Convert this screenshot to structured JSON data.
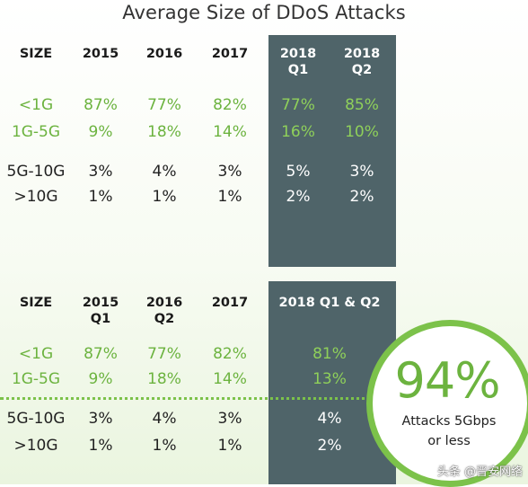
{
  "title": "Average Size of DDoS Attacks",
  "chart_data": [
    {
      "type": "table",
      "title": "Average Size of DDoS Attacks",
      "columns": [
        "SIZE",
        "2015",
        "2016",
        "2017",
        "2018 Q1",
        "2018 Q2"
      ],
      "header_lines": [
        [
          "SIZE"
        ],
        [
          "2015"
        ],
        [
          "2016"
        ],
        [
          "2017"
        ],
        [
          "2018",
          "Q1"
        ],
        [
          "2018",
          "Q2"
        ]
      ],
      "rows": [
        {
          "size": "<1G",
          "values": [
            "87%",
            "77%",
            "82%",
            "77%",
            "85%"
          ]
        },
        {
          "size": "1G-5G",
          "values": [
            "9%",
            "18%",
            "14%",
            "16%",
            "10%"
          ]
        },
        {
          "size": "5G-10G",
          "values": [
            "3%",
            "4%",
            "3%",
            "5%",
            "3%"
          ]
        },
        {
          "size": ">10G",
          "values": [
            "1%",
            "1%",
            "1%",
            "2%",
            "2%"
          ]
        }
      ]
    },
    {
      "type": "table",
      "columns": [
        "SIZE",
        "2015 Q1",
        "2016 Q2",
        "2017",
        "2018 Q1 & Q2"
      ],
      "header_lines": [
        [
          "SIZE"
        ],
        [
          "2015",
          "Q1"
        ],
        [
          "2016",
          "Q2"
        ],
        [
          "2017"
        ],
        [
          "2018 Q1 & Q2"
        ]
      ],
      "rows": [
        {
          "size": "<1G",
          "values": [
            "87%",
            "77%",
            "82%",
            "81%"
          ]
        },
        {
          "size": "1G-5G",
          "values": [
            "9%",
            "18%",
            "14%",
            "13%"
          ]
        },
        {
          "size": "5G-10G",
          "values": [
            "3%",
            "4%",
            "3%",
            "4%"
          ]
        },
        {
          "size": ">10G",
          "values": [
            "1%",
            "1%",
            "1%",
            "2%"
          ]
        }
      ]
    }
  ],
  "callout": {
    "value": "94%",
    "line1": "Attacks 5Gbps",
    "line2": "or less"
  },
  "watermark": "头条 @晋安网络",
  "colors": {
    "panel": "#4f6469",
    "green": "#6cb33f",
    "ring": "#7cc24a"
  }
}
